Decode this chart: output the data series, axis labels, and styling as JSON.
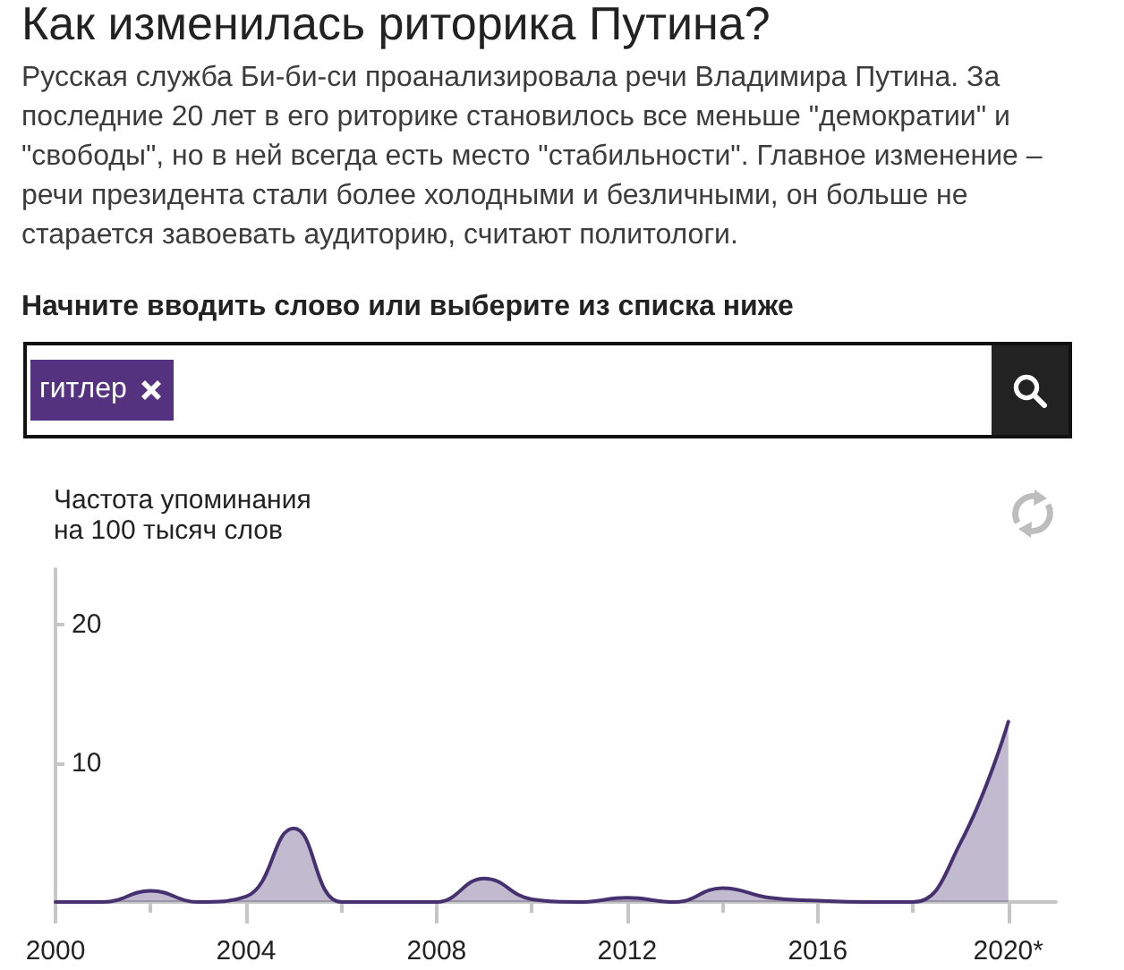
{
  "chart_data": {
    "type": "area",
    "title": "Как изменилась риторика Путина?",
    "subtitle": "Русская служба Би-би-си проанализировала речи Владимира Путина. За последние 20 лет в его риторике становилось все меньше \"демократии\" и \"свободы\", но в ней всегда есть место \"стабильности\". Главное изменение – речи президента стали более холодными и безличными, он больше не старается завоевать аудиторию, считают политологи.",
    "annotations": [
      "Начните вводить слово или выберите из списка ниже",
      "гитлер"
    ],
    "ylabel": "Частота упоминания на 100 тысяч слов",
    "x": [
      2000,
      2001,
      2002,
      2003,
      2004,
      2005,
      2006,
      2007,
      2008,
      2009,
      2010,
      2011,
      2012,
      2013,
      2014,
      2015,
      2016,
      2017,
      2018,
      2019,
      2020
    ],
    "series": [
      {
        "color": "#46306f",
        "values": [
          0,
          0,
          0.8,
          0,
          0.4,
          5.3,
          0,
          0,
          0,
          1.7,
          0.2,
          0,
          0.3,
          0,
          1.0,
          0.3,
          0.1,
          0,
          0,
          4.3,
          13
        ]
      }
    ],
    "xlim": [
      2000,
      2021
    ],
    "xticks": [
      2000,
      {
        "value": 2002,
        "label": null
      },
      2004,
      {
        "value": 2006,
        "label": null
      },
      2008,
      {
        "value": 2010,
        "label": null
      },
      2012,
      {
        "value": 2014,
        "label": null
      },
      2016,
      {
        "value": 2018,
        "label": null
      },
      {
        "value": 2020,
        "label": "2020*"
      }
    ],
    "ylim": [
      0,
      24
    ],
    "yticks": [
      10,
      20
    ],
    "marker": "none"
  }
}
